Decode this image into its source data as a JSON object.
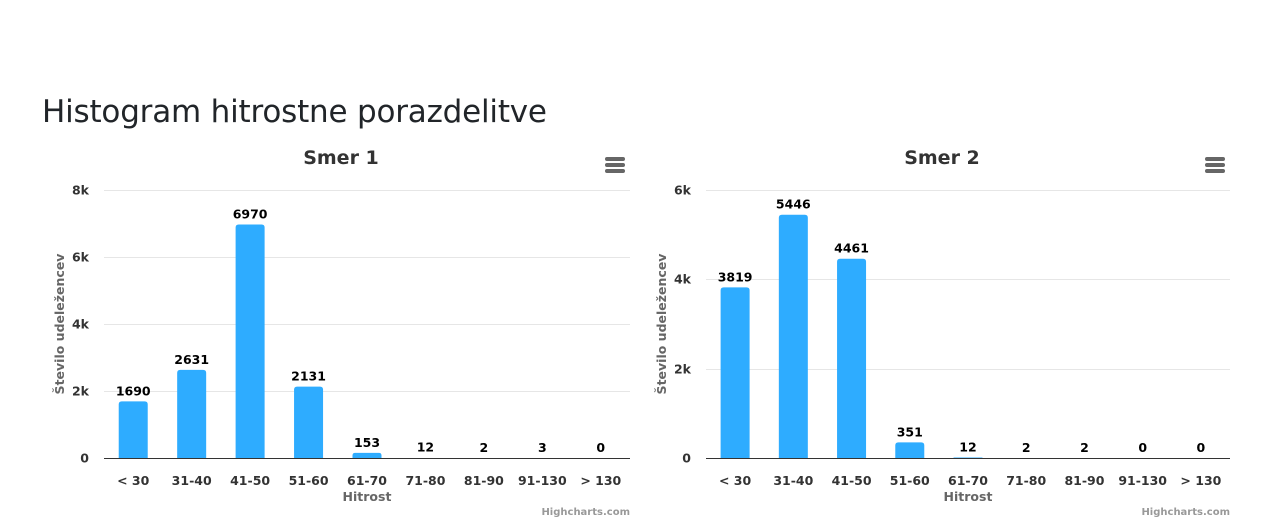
{
  "page": {
    "heading": "Histogram hitrostne porazdelitve"
  },
  "chart_data": [
    {
      "type": "bar",
      "title": "Smer 1",
      "xlabel": "Hitrost",
      "ylabel": "Število udeležencev",
      "categories": [
        "< 30",
        "31-40",
        "41-50",
        "51-60",
        "61-70",
        "71-80",
        "81-90",
        "91-130",
        "> 130"
      ],
      "values": [
        1690,
        2631,
        6970,
        2131,
        153,
        12,
        2,
        3,
        0
      ],
      "ylim": [
        0,
        8000
      ],
      "yticks": [
        0,
        2000,
        4000,
        6000,
        8000
      ],
      "ytick_labels": [
        "0",
        "2k",
        "4k",
        "6k",
        "8k"
      ],
      "color": "#2eacff",
      "grid": true,
      "legend": "none",
      "credits": "Highcharts.com"
    },
    {
      "type": "bar",
      "title": "Smer 2",
      "xlabel": "Hitrost",
      "ylabel": "Število udeležencev",
      "categories": [
        "< 30",
        "31-40",
        "41-50",
        "51-60",
        "61-70",
        "71-80",
        "81-90",
        "91-130",
        "> 130"
      ],
      "values": [
        3819,
        5446,
        4461,
        351,
        12,
        2,
        2,
        0,
        0
      ],
      "ylim": [
        0,
        6000
      ],
      "yticks": [
        0,
        2000,
        4000,
        6000
      ],
      "ytick_labels": [
        "0",
        "2k",
        "4k",
        "6k"
      ],
      "color": "#2eacff",
      "grid": true,
      "legend": "none",
      "credits": "Highcharts.com"
    }
  ]
}
